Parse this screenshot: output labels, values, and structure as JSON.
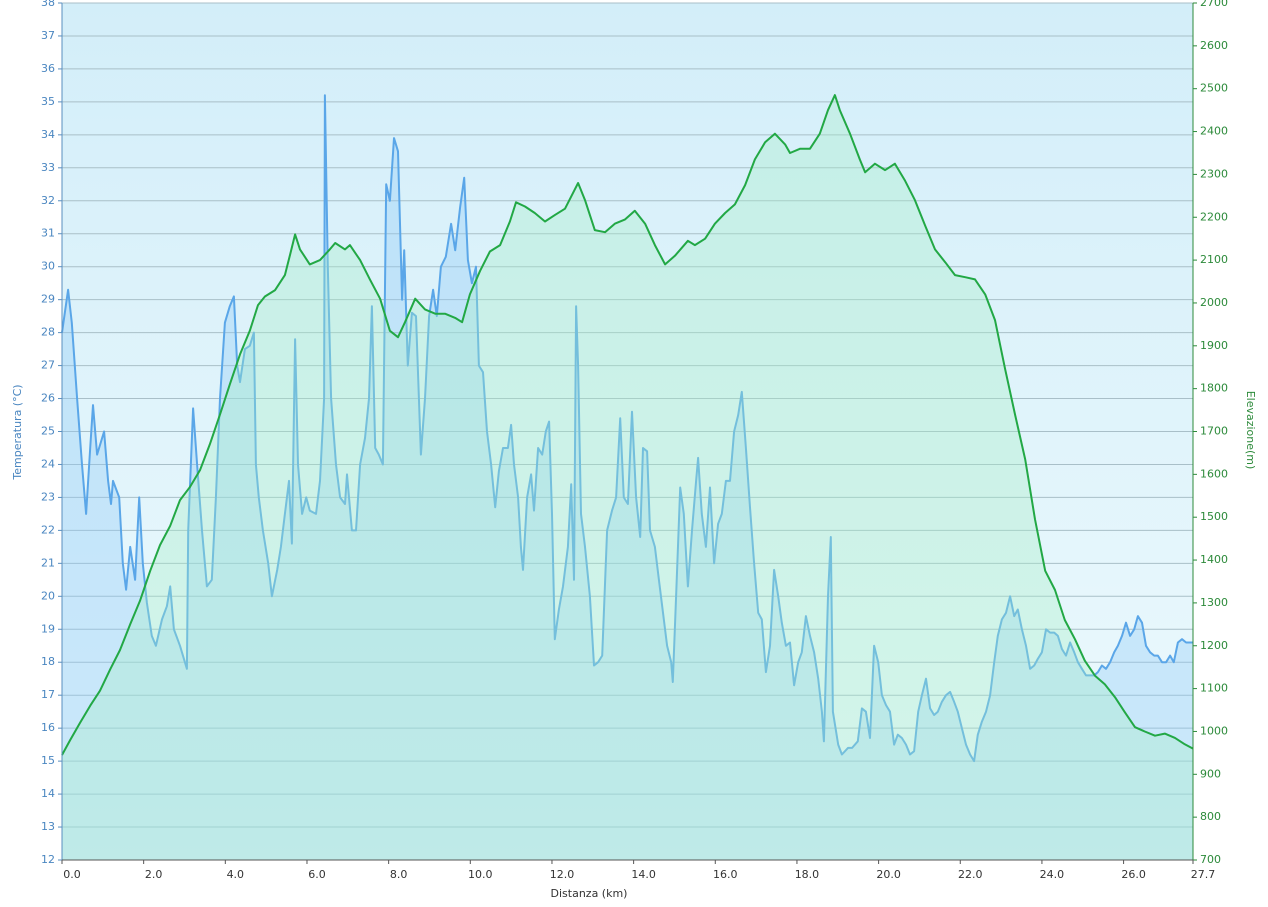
{
  "chart_data": {
    "type": "line",
    "xlabel": "Distanza  (km)",
    "ylabel": "Temperatura (°C)",
    "y2label": "Elevazione(m)",
    "xlim": [
      0,
      27.7
    ],
    "ylim": [
      12,
      38
    ],
    "y2lim": [
      700,
      2700
    ],
    "grid": true,
    "xticks": [
      {
        "value": 0,
        "label": "0.0"
      },
      {
        "value": 2,
        "label": "2.0"
      },
      {
        "value": 4,
        "label": "4.0"
      },
      {
        "value": 6,
        "label": "6.0"
      },
      {
        "value": 8,
        "label": "8.0"
      },
      {
        "value": 10,
        "label": "10.0"
      },
      {
        "value": 12,
        "label": "12.0"
      },
      {
        "value": 14,
        "label": "14.0"
      },
      {
        "value": 16,
        "label": "16.0"
      },
      {
        "value": 18,
        "label": "18.0"
      },
      {
        "value": 20,
        "label": "20.0"
      },
      {
        "value": 22,
        "label": "22.0"
      },
      {
        "value": 24,
        "label": "24.0"
      },
      {
        "value": 26,
        "label": "26.0"
      },
      27.7
    ],
    "yticks": [
      12,
      13,
      14,
      15,
      16,
      17,
      18,
      19,
      20,
      21,
      22,
      23,
      24,
      25,
      26,
      27,
      28,
      29,
      30,
      31,
      32,
      33,
      34,
      35,
      36,
      37,
      38
    ],
    "y2ticks": [
      700,
      800,
      900,
      1000,
      1100,
      1200,
      1300,
      1400,
      1500,
      1600,
      1700,
      1800,
      1900,
      2000,
      2100,
      2200,
      2300,
      2400,
      2500,
      2600,
      2700
    ],
    "series": [
      {
        "color": "#5aa6e8",
        "fill": "#8cc8f5",
        "axis": "y",
        "x": [
          0,
          0.15,
          0.24,
          0.37,
          0.49,
          0.59,
          0.69,
          0.76,
          0.86,
          1.03,
          1.13,
          1.2,
          1.25,
          1.4,
          1.49,
          1.57,
          1.67,
          1.79,
          1.89,
          1.98,
          2.08,
          2.2,
          2.3,
          2.45,
          2.57,
          2.65,
          2.74,
          2.89,
          3.01,
          3.06,
          3.09,
          3.21,
          3.31,
          3.43,
          3.55,
          3.67,
          3.77,
          3.87,
          3.99,
          4.11,
          4.21,
          4.29,
          4.36,
          4.48,
          4.6,
          4.7,
          4.75,
          4.82,
          4.92,
          5.05,
          5.14,
          5.27,
          5.36,
          5.46,
          5.56,
          5.63,
          5.71,
          5.78,
          5.88,
          5.98,
          6.07,
          6.22,
          6.32,
          6.42,
          6.44,
          6.51,
          6.59,
          6.71,
          6.81,
          6.93,
          6.98,
          7.1,
          7.2,
          7.3,
          7.42,
          7.52,
          7.59,
          7.67,
          7.76,
          7.86,
          7.94,
          8.03,
          8.13,
          8.23,
          8.33,
          8.38,
          8.47,
          8.57,
          8.67,
          8.79,
          8.89,
          8.99,
          9.09,
          9.18,
          9.28,
          9.4,
          9.53,
          9.63,
          9.75,
          9.85,
          9.94,
          10.04,
          10.14,
          10.21,
          10.31,
          10.41,
          10.51,
          10.61,
          10.7,
          10.8,
          10.92,
          11,
          11.07,
          11.17,
          11.24,
          11.29,
          11.39,
          11.49,
          11.56,
          11.66,
          11.76,
          11.85,
          11.93,
          12,
          12.07,
          12.17,
          12.27,
          12.39,
          12.47,
          12.54,
          12.59,
          12.64,
          12.71,
          12.81,
          12.93,
          13.03,
          13.13,
          13.23,
          13.35,
          13.47,
          13.57,
          13.67,
          13.76,
          13.86,
          13.96,
          14.06,
          14.16,
          14.23,
          14.33,
          14.4,
          14.52,
          14.62,
          14.72,
          14.82,
          14.92,
          14.96,
          15.04,
          15.14,
          15.23,
          15.33,
          15.43,
          15.53,
          15.58,
          15.67,
          15.77,
          15.87,
          15.97,
          16.07,
          16.16,
          16.26,
          16.36,
          16.46,
          16.56,
          16.65,
          16.75,
          16.85,
          16.95,
          17.05,
          17.14,
          17.24,
          17.34,
          17.44,
          17.54,
          17.63,
          17.73,
          17.83,
          17.93,
          18.03,
          18.12,
          18.22,
          18.32,
          18.42,
          18.52,
          18.61,
          18.66,
          18.76,
          18.83,
          18.88,
          19.01,
          19.1,
          19.25,
          19.35,
          19.49,
          19.59,
          19.69,
          19.79,
          19.89,
          19.99,
          20.08,
          20.18,
          20.28,
          20.38,
          20.47,
          20.57,
          20.67,
          20.77,
          20.87,
          20.97,
          21.06,
          21.16,
          21.26,
          21.36,
          21.45,
          21.55,
          21.65,
          21.75,
          21.85,
          21.94,
          22.04,
          22.14,
          22.24,
          22.34,
          22.43,
          22.53,
          22.63,
          22.73,
          22.83,
          22.92,
          23.02,
          23.12,
          23.22,
          23.32,
          23.41,
          23.51,
          23.61,
          23.71,
          23.81,
          23.9,
          24,
          24.1,
          24.2,
          24.3,
          24.39,
          24.49,
          24.59,
          24.69,
          24.79,
          24.88,
          24.98,
          25.08,
          25.18,
          25.28,
          25.37,
          25.47,
          25.57,
          25.67,
          25.77,
          25.86,
          25.96,
          26.06,
          26.16,
          26.26,
          26.35,
          26.45,
          26.55,
          26.65,
          26.75,
          26.84,
          26.94,
          27.04,
          27.14,
          27.23,
          27.33,
          27.43,
          27.53,
          27.7
        ],
        "values": [
          28,
          29.3,
          28.3,
          26,
          24,
          22.5,
          24.5,
          25.8,
          24.3,
          25,
          23.5,
          22.8,
          23.5,
          23,
          21,
          20.2,
          21.5,
          20.5,
          23,
          21,
          19.8,
          18.8,
          18.5,
          19.3,
          19.7,
          20.3,
          19,
          18.5,
          18,
          17.8,
          22,
          25.7,
          24,
          22,
          20.3,
          20.5,
          23,
          26,
          28.3,
          28.8,
          29.1,
          27,
          26.5,
          27.5,
          27.6,
          28,
          24,
          23,
          22,
          21,
          20,
          20.8,
          21.5,
          22.5,
          23.5,
          21.6,
          27.8,
          24,
          22.5,
          23,
          22.6,
          22.5,
          23.5,
          26,
          35.2,
          30,
          26,
          24,
          23,
          22.8,
          23.7,
          22,
          22,
          24,
          24.8,
          26,
          28.8,
          24.5,
          24.3,
          24,
          32.5,
          32,
          33.9,
          33.5,
          29,
          30.5,
          27,
          28.6,
          28.5,
          24.3,
          26,
          28.5,
          29.3,
          28.5,
          30,
          30.3,
          31.3,
          30.5,
          31.8,
          32.7,
          30.2,
          29.5,
          30,
          27,
          26.8,
          25,
          24,
          22.7,
          23.8,
          24.5,
          24.5,
          25.2,
          24,
          23,
          21.5,
          20.8,
          23,
          23.7,
          22.6,
          24.5,
          24.3,
          25,
          25.3,
          22.5,
          18.7,
          19.6,
          20.3,
          21.5,
          23.4,
          20.5,
          28.8,
          27,
          22.5,
          21.5,
          20,
          17.9,
          18,
          18.2,
          22,
          22.6,
          23,
          25.4,
          23,
          22.8,
          25.6,
          23,
          21.8,
          24.5,
          24.4,
          22,
          21.5,
          20.5,
          19.5,
          18.5,
          18,
          17.4,
          20,
          23.3,
          22.5,
          20.3,
          22,
          23.5,
          24.2,
          22.5,
          21.5,
          23.3,
          21,
          22.2,
          22.5,
          23.5,
          23.5,
          25,
          25.5,
          26.2,
          24.5,
          22.7,
          21,
          19.5,
          19.3,
          17.7,
          18.5,
          20.8,
          20,
          19.2,
          18.5,
          18.6,
          17.3,
          18,
          18.3,
          19.4,
          18.8,
          18.3,
          17.5,
          16.5,
          15.6,
          20,
          21.8,
          16.5,
          15.5,
          15.2,
          15.4,
          15.4,
          15.6,
          16.6,
          16.5,
          15.7,
          18.5,
          18,
          17,
          16.7,
          16.5,
          15.5,
          15.8,
          15.7,
          15.5,
          15.2,
          15.3,
          16.5,
          17,
          17.5,
          16.6,
          16.4,
          16.5,
          16.8,
          17,
          17.1,
          16.8,
          16.5,
          16,
          15.5,
          15.2,
          15,
          15.8,
          16.2,
          16.5,
          17,
          18,
          18.8,
          19.3,
          19.5,
          20,
          19.4,
          19.6,
          19,
          18.5,
          17.8,
          17.9,
          18.1,
          18.3,
          19,
          18.9,
          18.9,
          18.8,
          18.4,
          18.2,
          18.6,
          18.3,
          18,
          17.8,
          17.6,
          17.6,
          17.6,
          17.7,
          17.9,
          17.8,
          18,
          18.3,
          18.5,
          18.8,
          19.2,
          18.8,
          19,
          19.4,
          19.2,
          18.5,
          18.3,
          18.2,
          18.2,
          18,
          18,
          18.2,
          18,
          18.6,
          18.7,
          18.6,
          18.6
        ]
      },
      {
        "color": "#22a845",
        "fill": "#a6efc6",
        "axis": "y2",
        "x": [
          0,
          0.2,
          0.44,
          0.69,
          0.93,
          1.18,
          1.42,
          1.67,
          1.91,
          2.16,
          2.4,
          2.65,
          2.89,
          3.13,
          3.38,
          3.62,
          3.87,
          4.11,
          4.36,
          4.6,
          4.8,
          4.97,
          5.22,
          5.46,
          5.58,
          5.71,
          5.83,
          6.07,
          6.32,
          6.56,
          6.69,
          6.93,
          7.05,
          7.3,
          7.54,
          7.79,
          8.03,
          8.23,
          8.4,
          8.65,
          8.89,
          9.14,
          9.38,
          9.63,
          9.8,
          9.99,
          10.24,
          10.48,
          10.73,
          10.97,
          11.12,
          11.34,
          11.58,
          11.83,
          12.07,
          12.32,
          12.56,
          12.64,
          12.81,
          13.05,
          13.3,
          13.54,
          13.79,
          14.03,
          14.28,
          14.52,
          14.77,
          15.01,
          15.33,
          15.5,
          15.75,
          15.99,
          16.24,
          16.48,
          16.73,
          16.97,
          17.22,
          17.46,
          17.71,
          17.83,
          18.08,
          18.32,
          18.56,
          18.76,
          18.93,
          19.05,
          19.3,
          19.54,
          19.67,
          19.91,
          20.16,
          20.4,
          20.65,
          20.89,
          21.14,
          21.38,
          21.63,
          21.87,
          22.12,
          22.36,
          22.61,
          22.85,
          23.1,
          23.34,
          23.59,
          23.83,
          24.08,
          24.32,
          24.56,
          24.81,
          25.05,
          25.3,
          25.54,
          25.79,
          26.03,
          26.28,
          26.52,
          26.77,
          27.01,
          27.26,
          27.5,
          27.7
        ],
        "values": [
          945,
          980,
          1020,
          1060,
          1095,
          1145,
          1190,
          1250,
          1305,
          1375,
          1435,
          1480,
          1540,
          1570,
          1610,
          1670,
          1740,
          1810,
          1880,
          1935,
          1995,
          2015,
          2030,
          2065,
          2110,
          2160,
          2125,
          2090,
          2100,
          2125,
          2140,
          2125,
          2135,
          2100,
          2055,
          2010,
          1935,
          1920,
          1955,
          2010,
          1985,
          1975,
          1975,
          1965,
          1955,
          2020,
          2075,
          2120,
          2135,
          2190,
          2235,
          2225,
          2210,
          2190,
          2205,
          2220,
          2265,
          2280,
          2240,
          2170,
          2165,
          2185,
          2195,
          2215,
          2185,
          2135,
          2090,
          2110,
          2145,
          2135,
          2150,
          2185,
          2210,
          2230,
          2275,
          2335,
          2375,
          2395,
          2370,
          2350,
          2360,
          2360,
          2395,
          2450,
          2485,
          2450,
          2395,
          2335,
          2305,
          2325,
          2310,
          2325,
          2285,
          2240,
          2180,
          2125,
          2095,
          2065,
          2060,
          2055,
          2020,
          1960,
          1845,
          1740,
          1635,
          1495,
          1375,
          1330,
          1260,
          1215,
          1165,
          1130,
          1110,
          1080,
          1045,
          1010,
          1000,
          990,
          995,
          985,
          970,
          960
        ]
      }
    ]
  }
}
